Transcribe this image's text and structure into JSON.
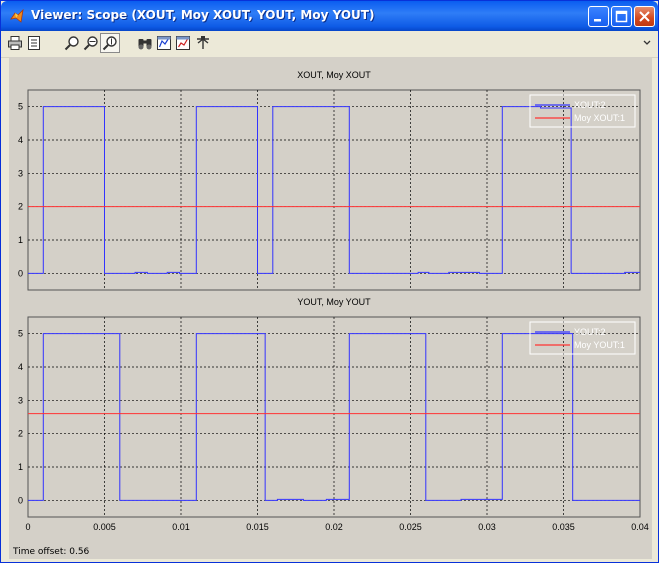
{
  "window": {
    "title": "Viewer: Scope (XOUT, Moy XOUT, YOUT, Moy YOUT)",
    "title_icon": "matlab-icon"
  },
  "toolbar": {
    "items": [
      "print-icon",
      "parameters-icon",
      "zoom-icon",
      "zoom-x-icon",
      "zoom-y-icon",
      "autoscale-icon",
      "save-axes-icon",
      "restore-axes-icon",
      "float-scope-icon"
    ]
  },
  "status": {
    "time_offset": "Time offset:  0.56"
  },
  "colors": {
    "plot_bg": "#d4d0c8",
    "signal": "#3333ff",
    "average": "#ff3333"
  },
  "chart_data": [
    {
      "type": "line",
      "title": "XOUT, Moy XOUT",
      "xlim": [
        0,
        0.04
      ],
      "ylim": [
        -0.5,
        5.5
      ],
      "yticks": [
        "0",
        "1",
        "2",
        "3",
        "4",
        "5"
      ],
      "xticks": [
        "0",
        "0.005",
        "0.01",
        "0.015",
        "0.02",
        "0.025",
        "0.03",
        "0.035",
        "0.04"
      ],
      "grid": true,
      "legend_position": "top-right",
      "series": [
        {
          "name": "XOUT:2",
          "color": "#3333ff",
          "x": [
            0,
            0.001,
            0.001,
            0.005,
            0.005,
            0.007,
            0.007,
            0.0078,
            0.0078,
            0.0091,
            0.0091,
            0.0099,
            0.0099,
            0.011,
            0.011,
            0.015,
            0.015,
            0.016,
            0.016,
            0.021,
            0.021,
            0.0255,
            0.0255,
            0.0262,
            0.0262,
            0.0275,
            0.0275,
            0.0295,
            0.0295,
            0.031,
            0.031,
            0.0335,
            0.0335,
            0.0355,
            0.0355,
            0.039,
            0.039,
            0.04
          ],
          "y": [
            0,
            0,
            5,
            5,
            0,
            0,
            0.03,
            0.03,
            0,
            0,
            0.03,
            0.03,
            0,
            0,
            5,
            5,
            0,
            0,
            5,
            5,
            0,
            0,
            0.03,
            0.03,
            0,
            0,
            0.03,
            0.03,
            0,
            0,
            5,
            5,
            4.96,
            4.96,
            0,
            0,
            0.03,
            0.03
          ]
        },
        {
          "name": "Moy XOUT:1",
          "color": "#ff3333",
          "x": [
            0,
            0.04
          ],
          "y": [
            2,
            2
          ]
        }
      ]
    },
    {
      "type": "line",
      "title": "YOUT, Moy YOUT",
      "xlim": [
        0,
        0.04
      ],
      "ylim": [
        -0.5,
        5.5
      ],
      "yticks": [
        "0",
        "1",
        "2",
        "3",
        "4",
        "5"
      ],
      "xticks": [
        "0",
        "0.005",
        "0.01",
        "0.015",
        "0.02",
        "0.025",
        "0.03",
        "0.035",
        "0.04"
      ],
      "grid": true,
      "legend_position": "top-right",
      "series": [
        {
          "name": "YOUT:2",
          "color": "#3333ff",
          "x": [
            0,
            0.001,
            0.001,
            0.006,
            0.006,
            0.011,
            0.011,
            0.0155,
            0.0155,
            0.0163,
            0.0163,
            0.018,
            0.018,
            0.0195,
            0.0195,
            0.021,
            0.021,
            0.026,
            0.026,
            0.0283,
            0.0283,
            0.031,
            0.031,
            0.0356,
            0.0356,
            0.04
          ],
          "y": [
            0,
            0,
            5,
            5,
            0,
            0,
            5,
            5,
            0,
            0,
            0.03,
            0.03,
            0,
            0,
            0.03,
            0.03,
            5,
            5,
            0,
            0,
            0.03,
            0.03,
            5,
            5,
            0,
            0
          ]
        },
        {
          "name": "Moy YOUT:1",
          "color": "#ff3333",
          "x": [
            0,
            0.04
          ],
          "y": [
            2.6,
            2.6
          ]
        }
      ]
    }
  ]
}
